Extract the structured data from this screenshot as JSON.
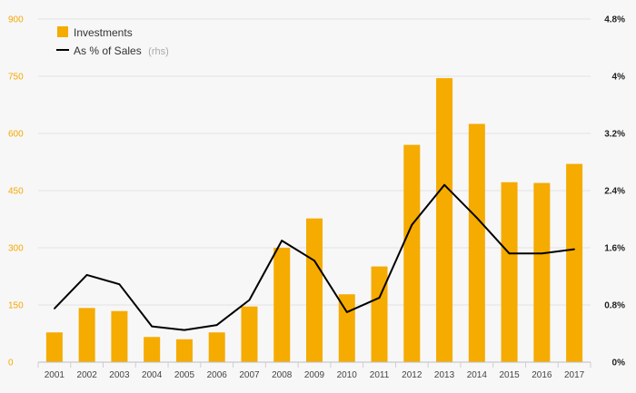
{
  "chart_data": {
    "type": "bar",
    "categories": [
      "2001",
      "2002",
      "2003",
      "2004",
      "2005",
      "2006",
      "2007",
      "2008",
      "2009",
      "2010",
      "2011",
      "2012",
      "2013",
      "2014",
      "2015",
      "2016",
      "2017"
    ],
    "series": [
      {
        "name": "Investments",
        "type": "bar",
        "axis": "left",
        "color": "#f5ab00",
        "values": [
          78,
          142,
          134,
          66,
          60,
          78,
          146,
          300,
          377,
          178,
          251,
          570,
          745,
          625,
          472,
          470,
          520
        ]
      },
      {
        "name": "As % of Sales",
        "axis_note": "(rhs)",
        "type": "line",
        "axis": "right",
        "color": "#000000",
        "values": [
          0.75,
          1.22,
          1.09,
          0.5,
          0.45,
          0.52,
          0.87,
          1.7,
          1.42,
          0.7,
          0.9,
          1.92,
          2.48,
          2.02,
          1.52,
          1.52,
          1.58
        ]
      }
    ],
    "y_left": {
      "ylim": [
        0,
        900
      ],
      "ticks": [
        0,
        150,
        300,
        450,
        600,
        750,
        900
      ],
      "tick_labels": [
        "0",
        "150",
        "300",
        "450",
        "600",
        "750",
        "900"
      ],
      "color": "#f5a800"
    },
    "y_right": {
      "ylim": [
        0,
        4.8
      ],
      "ticks": [
        0,
        0.8,
        1.6,
        2.4,
        3.2,
        4,
        4.8
      ],
      "tick_labels": [
        "0%",
        "0.8%",
        "1.6%",
        "2.4%",
        "3.2%",
        "4%",
        "4.8%"
      ],
      "unit": "%"
    },
    "title": "",
    "xlabel": "",
    "ylabel": "",
    "grid": true,
    "legend_position": "top-left"
  }
}
